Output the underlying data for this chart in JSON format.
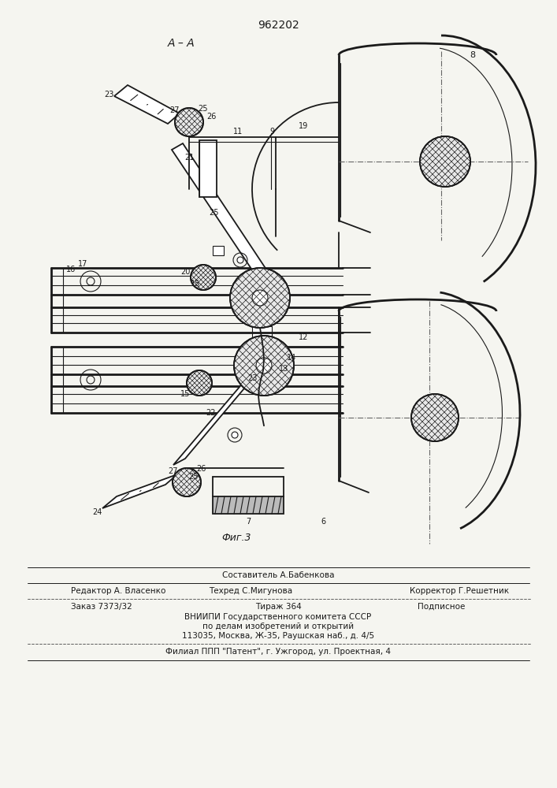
{
  "patent_number": "962202",
  "figure_label": "Фиг.3",
  "section_label": "A – A",
  "bg_color": "#f5f5f0",
  "line_color": "#1a1a1a",
  "footer": {
    "sostavitel": "Составитель А.Бабенкова",
    "redaktor": "Редактор А. Власенко",
    "tehred": "Техред С.Мигунова",
    "korrektor": "Корректор Г.Решетник",
    "zakaz": "Заказ 7373/32",
    "tirazh": "Тираж 364",
    "podpisnoe": "Подписное",
    "vniipи": "ВНИИПИ Государственного комитета СССР",
    "po_delam": "по делам изобретений и открытий",
    "adres": "113035, Москва, Ж-35, Раушская наб., д. 4/5",
    "filial": "Филиал ППП \"Патент\", г. Ужгород, ул. Проектная, 4"
  }
}
